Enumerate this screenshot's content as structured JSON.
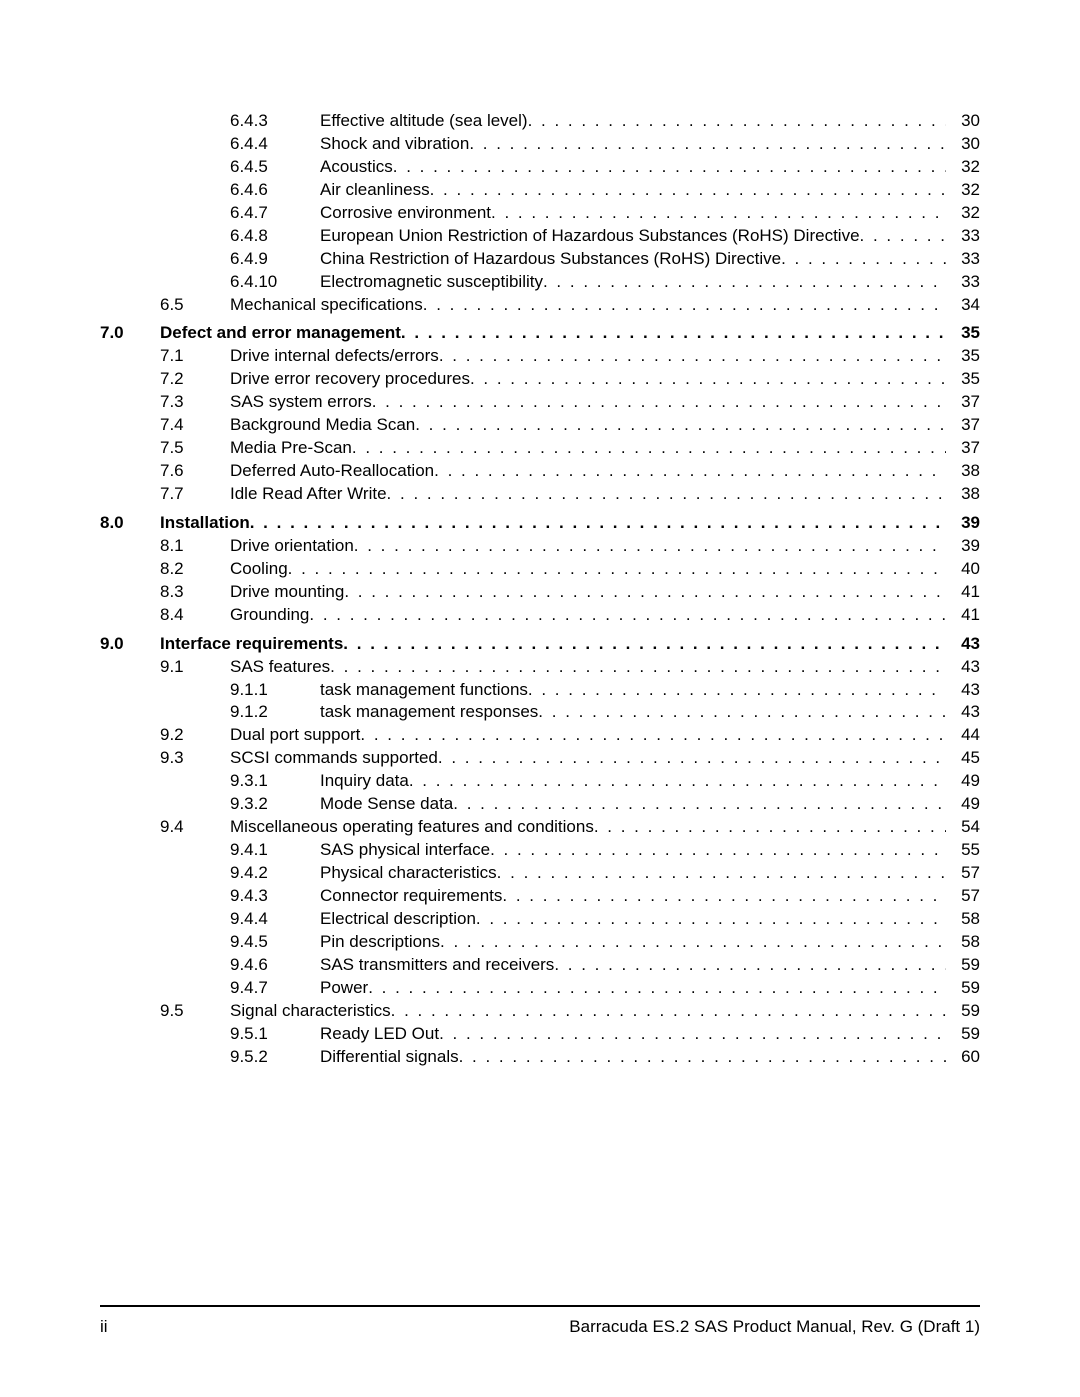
{
  "footer": {
    "page_number": "ii",
    "doc_title": "Barracuda ES.2 SAS Product Manual, Rev. G (Draft 1)"
  },
  "toc": [
    {
      "level": 3,
      "num": "6.4.3",
      "title": "Effective altitude (sea level)",
      "page": "30"
    },
    {
      "level": 3,
      "num": "6.4.4",
      "title": "Shock and vibration",
      "page": "30"
    },
    {
      "level": 3,
      "num": "6.4.5",
      "title": "Acoustics",
      "page": "32"
    },
    {
      "level": 3,
      "num": "6.4.6",
      "title": "Air cleanliness",
      "page": "32"
    },
    {
      "level": 3,
      "num": "6.4.7",
      "title": "Corrosive environment",
      "page": "32"
    },
    {
      "level": 3,
      "num": "6.4.8",
      "title": "European Union Restriction of Hazardous Substances (RoHS) Directive",
      "page": "33"
    },
    {
      "level": 3,
      "num": "6.4.9",
      "title": "China Restriction of Hazardous Substances (RoHS) Directive",
      "page": "33"
    },
    {
      "level": 3,
      "num": "6.4.10",
      "title": "Electromagnetic susceptibility",
      "page": "33"
    },
    {
      "level": 2,
      "num": "6.5",
      "title": "Mechanical specifications",
      "page": "34"
    },
    {
      "level": 1,
      "num": "7.0",
      "title": "Defect and error management",
      "page": "35",
      "bold": true,
      "gap": true
    },
    {
      "level": 2,
      "num": "7.1",
      "title": "Drive internal defects/errors",
      "page": "35"
    },
    {
      "level": 2,
      "num": "7.2",
      "title": "Drive error recovery procedures",
      "page": "35"
    },
    {
      "level": 2,
      "num": "7.3",
      "title": "SAS system errors",
      "page": "37"
    },
    {
      "level": 2,
      "num": "7.4",
      "title": "Background Media Scan",
      "page": "37"
    },
    {
      "level": 2,
      "num": "7.5",
      "title": "Media Pre-Scan",
      "page": "37"
    },
    {
      "level": 2,
      "num": "7.6",
      "title": "Deferred Auto-Reallocation",
      "page": "38"
    },
    {
      "level": 2,
      "num": "7.7",
      "title": "Idle Read After Write",
      "page": "38"
    },
    {
      "level": 1,
      "num": "8.0",
      "title": "Installation",
      "page": "39",
      "bold": true,
      "gap": true
    },
    {
      "level": 2,
      "num": "8.1",
      "title": "Drive orientation",
      "page": "39"
    },
    {
      "level": 2,
      "num": "8.2",
      "title": "Cooling",
      "page": "40"
    },
    {
      "level": 2,
      "num": "8.3",
      "title": "Drive mounting",
      "page": "41"
    },
    {
      "level": 2,
      "num": "8.4",
      "title": "Grounding",
      "page": "41"
    },
    {
      "level": 1,
      "num": "9.0",
      "title": "Interface requirements",
      "page": "43",
      "bold": true,
      "gap": true
    },
    {
      "level": 2,
      "num": "9.1",
      "title": "SAS features",
      "page": "43"
    },
    {
      "level": 3,
      "num": "9.1.1",
      "title": "task management functions",
      "page": "43"
    },
    {
      "level": 3,
      "num": "9.1.2",
      "title": "task management responses",
      "page": "43"
    },
    {
      "level": 2,
      "num": "9.2",
      "title": "Dual port support",
      "page": "44"
    },
    {
      "level": 2,
      "num": "9.3",
      "title": "SCSI commands supported",
      "page": "45"
    },
    {
      "level": 3,
      "num": "9.3.1",
      "title": "Inquiry data",
      "page": "49"
    },
    {
      "level": 3,
      "num": "9.3.2",
      "title": "Mode Sense data",
      "page": "49"
    },
    {
      "level": 2,
      "num": "9.4",
      "title": "Miscellaneous operating features and conditions",
      "page": "54"
    },
    {
      "level": 3,
      "num": "9.4.1",
      "title": "SAS physical interface",
      "page": "55"
    },
    {
      "level": 3,
      "num": "9.4.2",
      "title": "Physical characteristics",
      "page": "57"
    },
    {
      "level": 3,
      "num": "9.4.3",
      "title": "Connector requirements",
      "page": "57"
    },
    {
      "level": 3,
      "num": "9.4.4",
      "title": "Electrical description",
      "page": "58"
    },
    {
      "level": 3,
      "num": "9.4.5",
      "title": "Pin descriptions",
      "page": "58"
    },
    {
      "level": 3,
      "num": "9.4.6",
      "title": "SAS transmitters and receivers",
      "page": "59"
    },
    {
      "level": 3,
      "num": "9.4.7",
      "title": "Power",
      "page": "59"
    },
    {
      "level": 2,
      "num": "9.5",
      "title": "Signal characteristics",
      "page": "59"
    },
    {
      "level": 3,
      "num": "9.5.1",
      "title": "Ready LED Out",
      "page": "59"
    },
    {
      "level": 3,
      "num": "9.5.2",
      "title": "Differential signals",
      "page": "60"
    }
  ]
}
